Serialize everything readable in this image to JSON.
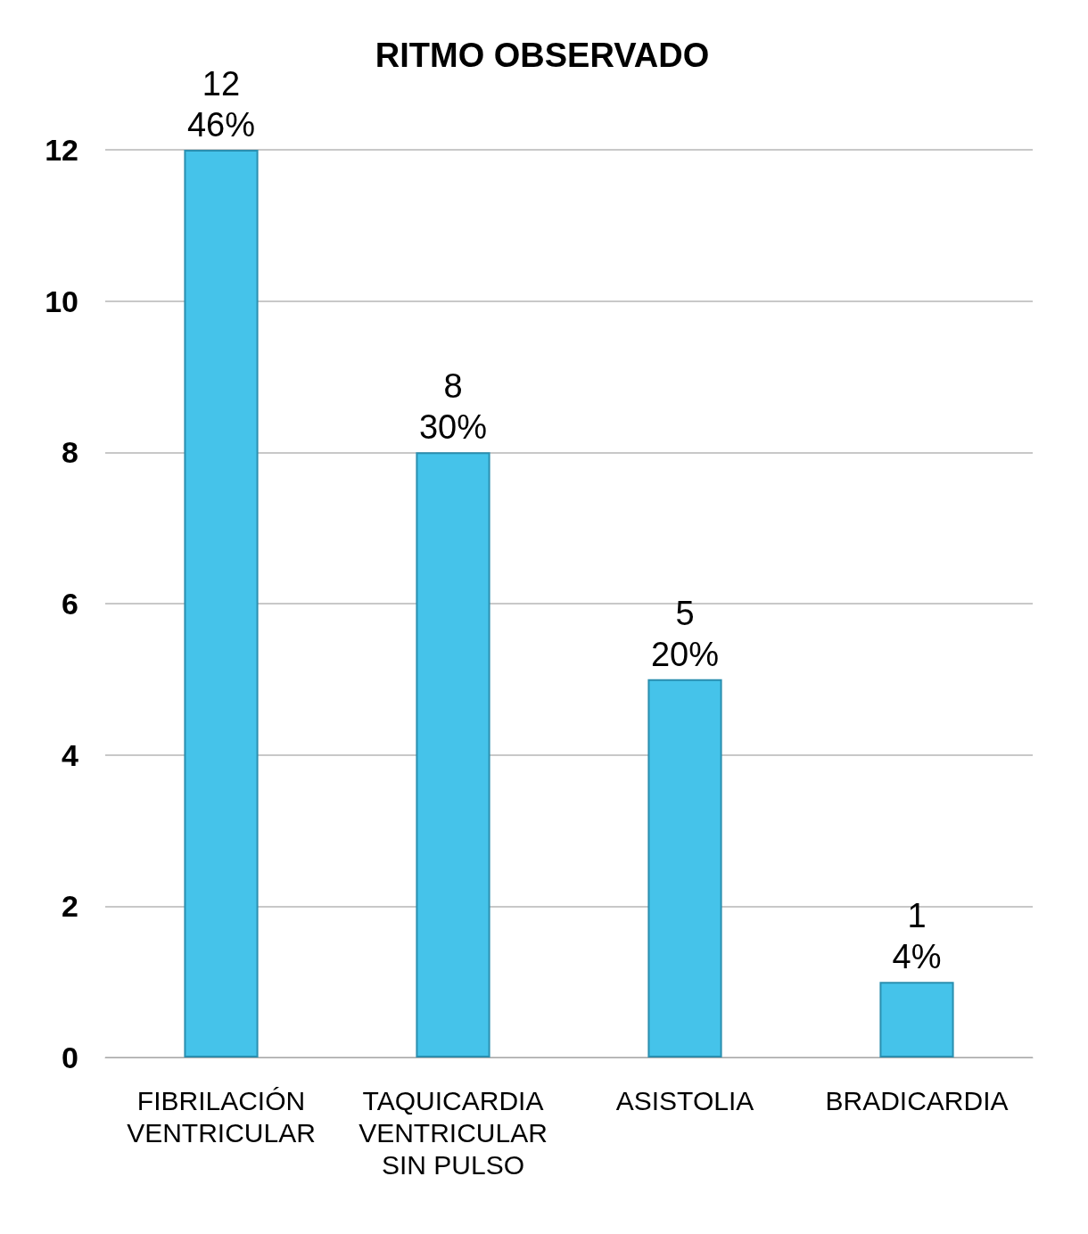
{
  "chart_data": {
    "type": "bar",
    "title": "RITMO OBSERVADO",
    "categories": [
      "FIBRILACIÓN\nVENTRICULAR",
      "TAQUICARDIA\nVENTRICULAR\nSIN PULSO",
      "ASISTOLIA",
      "BRADICARDIA"
    ],
    "values": [
      12,
      8,
      5,
      1
    ],
    "value_labels": [
      "12\n46%",
      "8\n30%",
      "5\n20%",
      "1\n4%"
    ],
    "color": "#45c3ea",
    "ylim": [
      0,
      12
    ],
    "yticks": [
      0,
      2,
      4,
      6,
      8,
      10,
      12
    ],
    "grid": "y"
  }
}
